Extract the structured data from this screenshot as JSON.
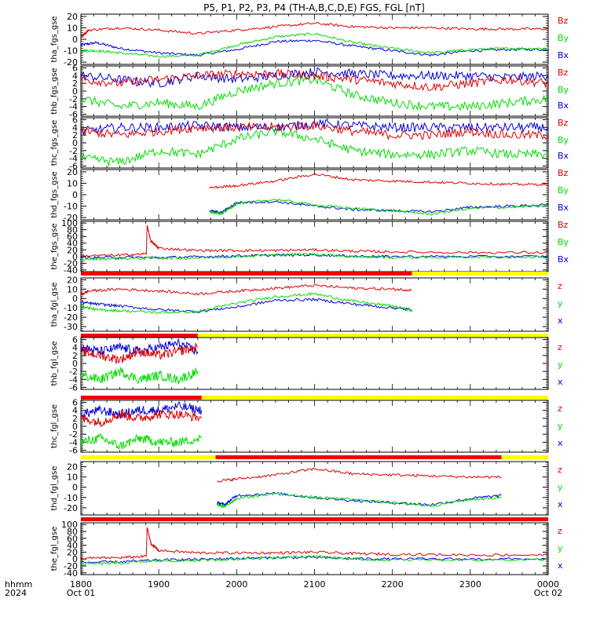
{
  "title": "P5, P1, P2, P3, P4 (TH-A,B,C,D,E) FGS, FGL [nT]",
  "colors": {
    "x": "#0000dd",
    "y": "#00dd00",
    "z": "#dd0000",
    "bar_on": "#ee0000",
    "bar_off": "#ffff00"
  },
  "x_axis": {
    "row_labels": [
      "hhmm",
      "2024"
    ],
    "ticks": [
      {
        "main": "1800",
        "sub": "Oct 01"
      },
      {
        "main": "1900",
        "sub": ""
      },
      {
        "main": "2000",
        "sub": ""
      },
      {
        "main": "2100",
        "sub": ""
      },
      {
        "main": "2200",
        "sub": ""
      },
      {
        "main": "2300",
        "sub": ""
      },
      {
        "main": "0000",
        "sub": "Oct 02"
      }
    ]
  },
  "chart_data": [
    {
      "type": "line",
      "ylabel": "tha_fgs_gse",
      "ylim": [
        -22,
        22
      ],
      "yticks": [
        20,
        10,
        0,
        -10,
        -20
      ],
      "legend": [
        "Bz",
        "By",
        "Bx"
      ],
      "bar": null,
      "x_range_hours": [
        0,
        6
      ],
      "series": [
        {
          "name": "Bz",
          "color": "z",
          "x": [
            0,
            0.1,
            0.5,
            1.0,
            1.5,
            2.0,
            2.5,
            3.0,
            3.5,
            4.0,
            4.5,
            5.0,
            5.5,
            6.0
          ],
          "y": [
            2,
            8,
            10,
            8,
            5,
            8,
            11,
            14,
            11,
            10,
            10,
            9,
            9,
            9
          ]
        },
        {
          "name": "By",
          "color": "y",
          "x": [
            0,
            0.2,
            0.5,
            1.0,
            1.5,
            2.0,
            2.5,
            3.0,
            3.5,
            4.0,
            4.5,
            5.0,
            5.5,
            6.0
          ],
          "y": [
            -10,
            -10,
            -12,
            -15,
            -14,
            -5,
            2,
            5,
            -3,
            -8,
            -12,
            -9,
            -8,
            -8
          ]
        },
        {
          "name": "Bx",
          "color": "x",
          "x": [
            0,
            0.2,
            0.5,
            1.0,
            1.5,
            2.0,
            2.5,
            3.0,
            3.5,
            4.0,
            4.5,
            5.0,
            5.5,
            6.0
          ],
          "y": [
            -5,
            -3,
            -8,
            -12,
            -14,
            -9,
            -2,
            -1,
            -6,
            -10,
            -14,
            -10,
            -9,
            -9
          ]
        }
      ]
    },
    {
      "type": "line",
      "ylabel": "thb_fgs_gse",
      "ylim": [
        -6.5,
        6.5
      ],
      "yticks": [
        6,
        4,
        2,
        0,
        -2,
        -4,
        -6
      ],
      "legend": [
        "Bz",
        "By",
        "Bx"
      ],
      "bar": null,
      "x_range_hours": [
        0,
        6
      ],
      "series": [
        {
          "name": "Bz",
          "color": "z",
          "x": [
            0,
            0.5,
            1.0,
            1.5,
            2.0,
            2.5,
            3.0,
            3.5,
            4.0,
            4.5,
            5.0,
            5.5,
            6.0
          ],
          "y": [
            3,
            2,
            3,
            4,
            4.5,
            4.5,
            4,
            3,
            2,
            1,
            2,
            3,
            2
          ]
        },
        {
          "name": "By",
          "color": "y",
          "x": [
            0,
            0.5,
            1.0,
            1.5,
            2.0,
            2.5,
            3.0,
            3.5,
            4.0,
            4.5,
            5.0,
            5.5,
            6.0
          ],
          "y": [
            -2,
            -4,
            -3,
            -4,
            0,
            2,
            3,
            -1,
            -3,
            -4,
            -4,
            -3,
            -2
          ]
        },
        {
          "name": "Bx",
          "color": "x",
          "x": [
            0,
            0.5,
            1.0,
            1.5,
            2.0,
            2.5,
            3.0,
            3.5,
            4.0,
            4.5,
            5.0,
            5.5,
            6.0
          ],
          "y": [
            4,
            3,
            2,
            4,
            3,
            4,
            5,
            4.5,
            4,
            4,
            4,
            3.5,
            4
          ]
        }
      ]
    },
    {
      "type": "line",
      "ylabel": "thc_fgs_gse",
      "ylim": [
        -6.5,
        6.5
      ],
      "yticks": [
        6,
        4,
        2,
        0,
        -2,
        -4,
        -6
      ],
      "legend": [
        "Bz",
        "By",
        "Bx"
      ],
      "bar": null,
      "x_range_hours": [
        0,
        6
      ],
      "series": [
        {
          "name": "Bz",
          "color": "z",
          "x": [
            0,
            0.5,
            1.0,
            1.5,
            2.0,
            2.5,
            3.0,
            3.5,
            4.0,
            4.5,
            5.0,
            5.5,
            6.0
          ],
          "y": [
            3,
            2,
            3,
            4,
            4,
            4,
            4.5,
            3,
            2,
            2,
            3,
            2,
            2
          ]
        },
        {
          "name": "By",
          "color": "y",
          "x": [
            0,
            0.5,
            1.0,
            1.5,
            2.0,
            2.5,
            3.0,
            3.5,
            4.0,
            4.5,
            5.0,
            5.5,
            6.0
          ],
          "y": [
            -4,
            -5,
            -2,
            -3,
            1,
            3,
            1,
            -2,
            -3,
            -3,
            -2,
            -3,
            -3
          ]
        },
        {
          "name": "Bx",
          "color": "x",
          "x": [
            0,
            0.5,
            1.0,
            1.5,
            2.0,
            2.5,
            3.0,
            3.5,
            4.0,
            4.5,
            5.0,
            5.5,
            6.0
          ],
          "y": [
            3,
            4,
            4,
            4.5,
            4,
            4,
            5,
            4.5,
            4,
            4,
            4,
            4,
            4
          ]
        }
      ]
    },
    {
      "type": "line",
      "ylabel": "thd_fgs_gse",
      "ylim": [
        -22,
        22
      ],
      "yticks": [
        20,
        10,
        0,
        -10,
        -20
      ],
      "legend": [
        "Bz",
        "By",
        "Bx"
      ],
      "bar": null,
      "x_range_hours": [
        1.6,
        6
      ],
      "series": [
        {
          "name": "Bz",
          "color": "z",
          "x": [
            1.65,
            2.0,
            2.5,
            3.0,
            3.5,
            4.0,
            4.5,
            5.0,
            5.5,
            6.0
          ],
          "y": [
            6,
            8,
            12,
            18,
            13,
            12,
            11,
            10,
            9,
            9
          ]
        },
        {
          "name": "By",
          "color": "y",
          "x": [
            1.65,
            1.8,
            2.0,
            2.5,
            3.0,
            3.5,
            4.0,
            4.5,
            5.0,
            5.5,
            6.0
          ],
          "y": [
            -15,
            -17,
            -8,
            -4,
            -9,
            -12,
            -14,
            -17,
            -12,
            -11,
            -10
          ]
        },
        {
          "name": "Bx",
          "color": "x",
          "x": [
            1.65,
            1.8,
            2.0,
            2.5,
            3.0,
            3.5,
            4.0,
            4.5,
            5.0,
            5.5,
            6.0
          ],
          "y": [
            -14,
            -16,
            -7,
            -6,
            -10,
            -13,
            -14,
            -15,
            -11,
            -10,
            -9
          ]
        }
      ]
    },
    {
      "type": "line",
      "ylabel": "the_fgs_gse",
      "ylim": [
        -45,
        105
      ],
      "yticks": [
        100,
        80,
        60,
        40,
        20,
        0,
        -20,
        -40
      ],
      "legend": [
        "Bz",
        "By",
        "Bx"
      ],
      "bar": null,
      "x_range_hours": [
        0,
        6
      ],
      "series": [
        {
          "name": "Bz",
          "color": "z",
          "x": [
            0,
            0.5,
            0.84,
            0.85,
            0.9,
            1.0,
            1.5,
            2.0,
            2.5,
            3.0,
            3.5,
            4.0,
            5.0,
            6.0
          ],
          "y": [
            2,
            4,
            8,
            92,
            45,
            25,
            18,
            18,
            18,
            20,
            16,
            14,
            12,
            12
          ]
        },
        {
          "name": "By",
          "color": "y",
          "x": [
            0,
            0.5,
            1.0,
            1.5,
            2.0,
            2.5,
            3.0,
            3.5,
            4.0,
            5.0,
            6.0
          ],
          "y": [
            -8,
            -6,
            -5,
            -4,
            0,
            5,
            8,
            0,
            -3,
            -2,
            -2
          ]
        },
        {
          "name": "Bx",
          "color": "x",
          "x": [
            0,
            0.5,
            1.0,
            1.5,
            2.0,
            2.5,
            3.0,
            3.5,
            4.0,
            5.0,
            6.0
          ],
          "y": [
            -4,
            -2,
            -3,
            -1,
            2,
            4,
            5,
            1,
            0,
            0,
            0
          ]
        }
      ]
    },
    {
      "type": "line",
      "ylabel": "tha_fgl_gse",
      "ylim": [
        -35,
        22
      ],
      "yticks": [
        20,
        10,
        0,
        -10,
        -20,
        -30
      ],
      "legend": [
        "z",
        "y",
        "x"
      ],
      "bar": {
        "on": [
          [
            0,
            4.25
          ]
        ]
      },
      "x_range_hours": [
        0,
        4.25
      ],
      "series": [
        {
          "name": "z",
          "color": "z",
          "x": [
            0,
            0.1,
            0.5,
            1.0,
            1.5,
            2.0,
            2.5,
            3.0,
            3.5,
            4.0,
            4.25
          ],
          "y": [
            4,
            8,
            10,
            8,
            5,
            8,
            11,
            14,
            11,
            10,
            9
          ]
        },
        {
          "name": "y",
          "color": "y",
          "x": [
            0,
            0.2,
            0.5,
            1.0,
            1.5,
            2.0,
            2.5,
            3.0,
            3.5,
            4.0,
            4.25
          ],
          "y": [
            -8,
            -12,
            -13,
            -15,
            -14,
            -5,
            2,
            5,
            -3,
            -8,
            -13
          ]
        },
        {
          "name": "x",
          "color": "x",
          "x": [
            0,
            0.2,
            0.5,
            1.0,
            1.5,
            2.0,
            2.5,
            3.0,
            3.5,
            4.0,
            4.25
          ],
          "y": [
            -4,
            -6,
            -8,
            -12,
            -14,
            -9,
            -2,
            -1,
            -6,
            -10,
            -12
          ]
        }
      ]
    },
    {
      "type": "line",
      "ylabel": "thb_fgl_gse",
      "ylim": [
        -6.5,
        6.5
      ],
      "yticks": [
        6,
        4,
        2,
        0,
        -2,
        -4,
        -6
      ],
      "legend": [
        "z",
        "y",
        "x"
      ],
      "bar": {
        "on": [
          [
            0,
            1.5
          ]
        ]
      },
      "x_range_hours": [
        0,
        1.5
      ],
      "series": [
        {
          "name": "z",
          "color": "z",
          "x": [
            0,
            0.25,
            0.5,
            0.75,
            1.0,
            1.25,
            1.5
          ],
          "y": [
            3,
            2,
            1,
            3,
            2,
            3,
            4
          ]
        },
        {
          "name": "y",
          "color": "y",
          "x": [
            0,
            0.25,
            0.5,
            0.75,
            1.0,
            1.25,
            1.5
          ],
          "y": [
            -3,
            -4,
            -2,
            -4,
            -3,
            -4,
            -2
          ]
        },
        {
          "name": "x",
          "color": "x",
          "x": [
            0,
            0.25,
            0.5,
            0.75,
            1.0,
            1.25,
            1.5
          ],
          "y": [
            4,
            3,
            4,
            3,
            4,
            5,
            3
          ]
        }
      ]
    },
    {
      "type": "line",
      "ylabel": "thc_fgl_gse",
      "ylim": [
        -6.5,
        6.5
      ],
      "yticks": [
        6,
        4,
        2,
        0,
        -2,
        -4,
        -6
      ],
      "legend": [
        "z",
        "y",
        "x"
      ],
      "bar": {
        "on": [
          [
            0,
            1.55
          ]
        ]
      },
      "x_range_hours": [
        0,
        1.55
      ],
      "series": [
        {
          "name": "z",
          "color": "z",
          "x": [
            0,
            0.25,
            0.5,
            0.75,
            1.0,
            1.25,
            1.55
          ],
          "y": [
            2,
            1,
            3,
            2,
            3,
            3,
            2
          ]
        },
        {
          "name": "y",
          "color": "y",
          "x": [
            0,
            0.25,
            0.5,
            0.75,
            1.0,
            1.25,
            1.55
          ],
          "y": [
            -4,
            -3,
            -5,
            -3,
            -4,
            -4,
            -3
          ]
        },
        {
          "name": "x",
          "color": "x",
          "x": [
            0,
            0.25,
            0.5,
            0.75,
            1.0,
            1.25,
            1.55
          ],
          "y": [
            3,
            4,
            3,
            4,
            4,
            5,
            4
          ]
        }
      ]
    },
    {
      "type": "line",
      "ylabel": "thd_fgl_gse",
      "ylim": [
        -27,
        25
      ],
      "yticks": [
        20,
        10,
        0,
        -10,
        -20
      ],
      "legend": [
        "z",
        "y",
        "x"
      ],
      "bar": {
        "on": [
          [
            1.73,
            5.4
          ]
        ]
      },
      "x_range_hours": [
        1.73,
        5.4
      ],
      "series": [
        {
          "name": "z",
          "color": "z",
          "x": [
            1.75,
            2.0,
            2.5,
            3.0,
            3.5,
            4.0,
            4.5,
            5.0,
            5.4
          ],
          "y": [
            6,
            8,
            12,
            18,
            13,
            12,
            11,
            10,
            10
          ]
        },
        {
          "name": "y",
          "color": "y",
          "x": [
            1.75,
            1.85,
            2.0,
            2.5,
            3.0,
            3.5,
            4.0,
            4.5,
            5.0,
            5.4
          ],
          "y": [
            -17,
            -19,
            -11,
            -6,
            -10,
            -12,
            -15,
            -18,
            -12,
            -10
          ]
        },
        {
          "name": "x",
          "color": "x",
          "x": [
            1.75,
            1.85,
            2.0,
            2.5,
            3.0,
            3.5,
            4.0,
            4.5,
            5.0,
            5.4
          ],
          "y": [
            -15,
            -17,
            -8,
            -6,
            -10,
            -13,
            -15,
            -17,
            -11,
            -8
          ]
        }
      ]
    },
    {
      "type": "line",
      "ylabel": "the_fgl_gse",
      "ylim": [
        -45,
        105
      ],
      "yticks": [
        100,
        80,
        60,
        40,
        20,
        0,
        -20,
        -40
      ],
      "legend": [
        "z",
        "y",
        "x"
      ],
      "bar": {
        "on": [
          [
            0,
            6
          ]
        ]
      },
      "x_range_hours": [
        0,
        6
      ],
      "series": [
        {
          "name": "z",
          "color": "z",
          "x": [
            0,
            0.5,
            0.84,
            0.85,
            0.9,
            1.0,
            1.5,
            2.0,
            2.5,
            3.0,
            3.5,
            4.0,
            5.0,
            6.0
          ],
          "y": [
            2,
            4,
            8,
            92,
            45,
            25,
            18,
            18,
            18,
            20,
            16,
            14,
            12,
            12
          ]
        },
        {
          "name": "y",
          "color": "y",
          "x": [
            0,
            0.5,
            1.0,
            1.5,
            2.0,
            2.5,
            3.0,
            3.5,
            4.0,
            5.0,
            6.0
          ],
          "y": [
            -14,
            -12,
            -5,
            -4,
            0,
            5,
            8,
            0,
            -3,
            -2,
            -2
          ]
        },
        {
          "name": "x",
          "color": "x",
          "x": [
            0,
            0.5,
            1.0,
            1.5,
            2.0,
            2.5,
            3.0,
            3.5,
            4.0,
            5.0,
            6.0
          ],
          "y": [
            -10,
            -8,
            -3,
            -1,
            2,
            4,
            5,
            1,
            0,
            0,
            0
          ]
        }
      ]
    }
  ]
}
